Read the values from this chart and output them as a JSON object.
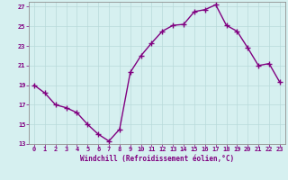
{
  "x": [
    0,
    1,
    2,
    3,
    4,
    5,
    6,
    7,
    8,
    9,
    10,
    11,
    12,
    13,
    14,
    15,
    16,
    17,
    18,
    19,
    20,
    21,
    22,
    23
  ],
  "y": [
    19.0,
    18.2,
    17.0,
    16.7,
    16.2,
    15.0,
    14.0,
    13.3,
    14.5,
    20.3,
    22.0,
    23.3,
    24.5,
    25.1,
    25.2,
    26.5,
    26.7,
    27.2,
    25.1,
    24.5,
    22.8,
    21.0,
    21.2,
    19.3
  ],
  "line_color": "#800080",
  "marker": "+",
  "marker_size": 4,
  "bg_color": "#d6f0f0",
  "grid_color": "#b8dada",
  "xlabel": "Windchill (Refroidissement éolien,°C)",
  "xlim": [
    -0.5,
    23.5
  ],
  "ylim": [
    13,
    27.5
  ],
  "yticks": [
    13,
    15,
    17,
    19,
    21,
    23,
    25,
    27
  ],
  "xticks": [
    0,
    1,
    2,
    3,
    4,
    5,
    6,
    7,
    8,
    9,
    10,
    11,
    12,
    13,
    14,
    15,
    16,
    17,
    18,
    19,
    20,
    21,
    22,
    23
  ],
  "tick_color": "#800080",
  "label_color": "#800080",
  "axis_color": "#909090",
  "line_width": 1.0,
  "marker_color": "#800080",
  "tick_fontsize": 5.0,
  "xlabel_fontsize": 5.5
}
